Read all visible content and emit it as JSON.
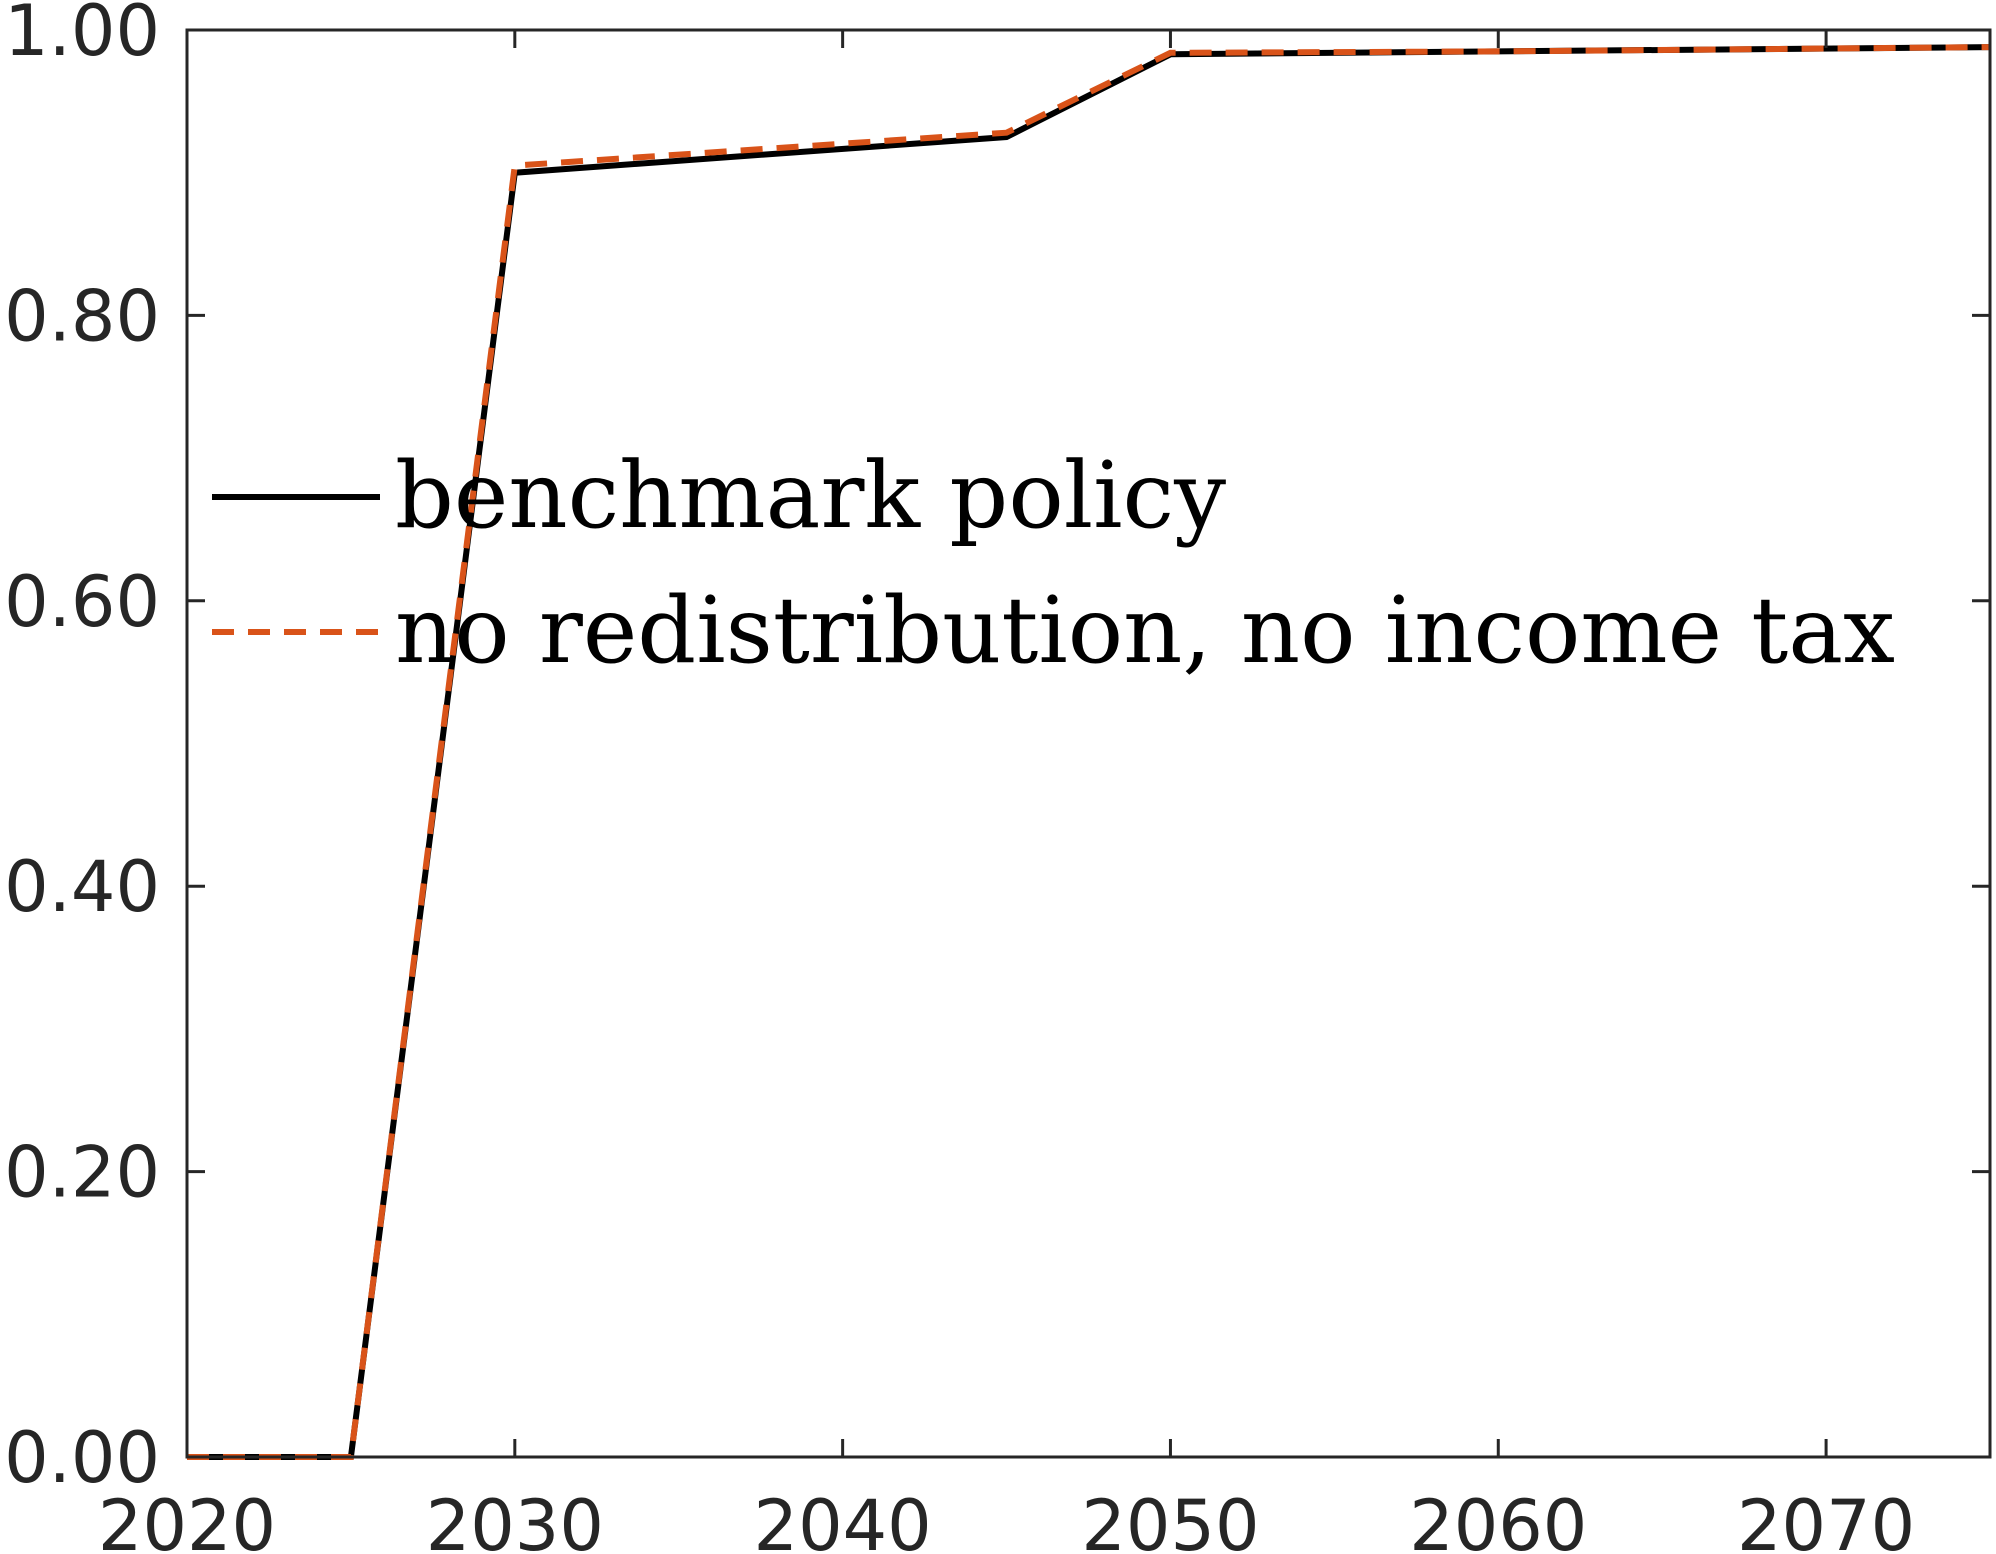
{
  "chart_data": {
    "type": "line",
    "title": "",
    "xlabel": "",
    "ylabel": "",
    "xlim": [
      2020,
      2075
    ],
    "ylim": [
      0,
      1
    ],
    "x_ticks": [
      "2020",
      "2030",
      "2040",
      "2050",
      "2060",
      "2070"
    ],
    "y_ticks": [
      "0.00",
      "0.20",
      "0.40",
      "0.60",
      "0.80",
      "1.00"
    ],
    "grid": false,
    "legend_position": "center-left",
    "series": [
      {
        "name": "benchmark policy",
        "color": "#000000",
        "line_style": "solid",
        "x": [
          2020,
          2025,
          2030,
          2045,
          2050,
          2060,
          2075
        ],
        "y": [
          0.0,
          0.0,
          0.9,
          0.925,
          0.983,
          0.985,
          0.988
        ]
      },
      {
        "name": "no redistribution, no income tax",
        "color": "#D95319",
        "line_style": "dashed",
        "x": [
          2020,
          2025,
          2030,
          2045,
          2050,
          2060,
          2075
        ],
        "y": [
          0.0,
          0.0,
          0.905,
          0.928,
          0.984,
          0.985,
          0.988
        ]
      }
    ]
  }
}
